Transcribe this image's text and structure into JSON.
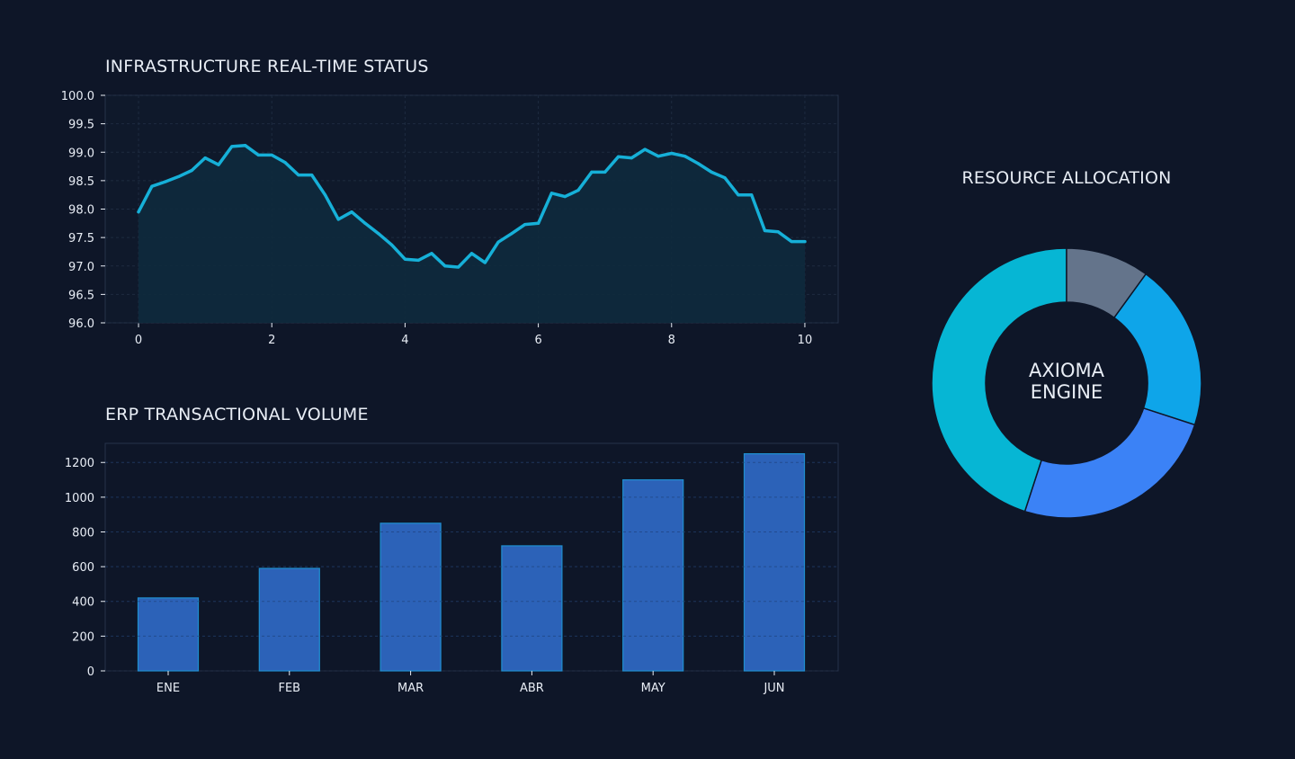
{
  "colors": {
    "background": "#0e1628",
    "plot_bg": "#0f192b",
    "grid": "#1e2b40",
    "axis": "#26324a",
    "line": "#16b0d8",
    "area": "#0e2a3d",
    "bar_fill": "#2c62b8",
    "bar_edge": "#1f8fd0",
    "text": "#e8edf5"
  },
  "chart_data": [
    {
      "type": "area",
      "title": "INFRASTRUCTURE REAL-TIME STATUS",
      "xlabel": "",
      "ylabel": "",
      "xlim": [
        -0.5,
        10.5
      ],
      "ylim": [
        96.0,
        100.0
      ],
      "x_ticks": [
        "0",
        "2",
        "4",
        "6",
        "8",
        "10"
      ],
      "y_ticks": [
        "96.0",
        "96.5",
        "97.0",
        "97.5",
        "98.0",
        "98.5",
        "99.0",
        "99.5",
        "100.0"
      ],
      "grid": true,
      "series": [
        {
          "x": [
            0,
            0.2,
            0.4,
            0.6,
            0.8,
            1.0,
            1.2,
            1.4,
            1.6,
            1.8,
            2.0,
            2.2,
            2.4,
            2.6,
            2.8,
            3.0,
            3.2,
            3.4,
            3.6,
            3.8,
            4.0,
            4.2,
            4.4,
            4.6,
            4.8,
            5.0,
            5.2,
            5.4,
            5.6,
            5.8,
            6.0,
            6.2,
            6.4,
            6.6,
            6.8,
            7.0,
            7.2,
            7.4,
            7.6,
            7.8,
            8.0,
            8.2,
            8.4,
            8.6,
            8.8,
            9.0,
            9.2,
            9.4,
            9.6,
            9.8,
            10.0
          ],
          "y": [
            97.95,
            98.4,
            98.48,
            98.57,
            98.68,
            98.9,
            98.78,
            99.1,
            99.12,
            98.95,
            98.95,
            98.82,
            98.6,
            98.6,
            98.25,
            97.82,
            97.95,
            97.75,
            97.57,
            97.37,
            97.12,
            97.1,
            97.22,
            97.0,
            96.98,
            97.22,
            97.06,
            97.42,
            97.57,
            97.73,
            97.75,
            98.28,
            98.22,
            98.33,
            98.65,
            98.65,
            98.92,
            98.9,
            99.05,
            98.93,
            98.98,
            98.93,
            98.8,
            98.65,
            98.55,
            98.25,
            98.25,
            97.62,
            97.6,
            97.43,
            97.43
          ]
        }
      ]
    },
    {
      "type": "bar",
      "title": "ERP TRANSACTIONAL VOLUME",
      "xlabel": "",
      "ylabel": "",
      "categories": [
        "ENE",
        "FEB",
        "MAR",
        "ABR",
        "MAY",
        "JUN"
      ],
      "values": [
        420,
        590,
        850,
        720,
        1100,
        1250
      ],
      "ylim": [
        0,
        1310
      ],
      "y_ticks": [
        "0",
        "200",
        "400",
        "600",
        "800",
        "1000",
        "1200"
      ],
      "grid": true
    },
    {
      "type": "pie",
      "style": "donut",
      "title": "RESOURCE ALLOCATION",
      "center_label_lines": [
        "AXIOMA",
        "ENGINE"
      ],
      "values": [
        10,
        20,
        25,
        45
      ],
      "colors": [
        "#64748b",
        "#0ea5e9",
        "#3b82f6",
        "#06b6d4"
      ],
      "start_angle_deg": 90,
      "direction": "clockwise"
    }
  ]
}
